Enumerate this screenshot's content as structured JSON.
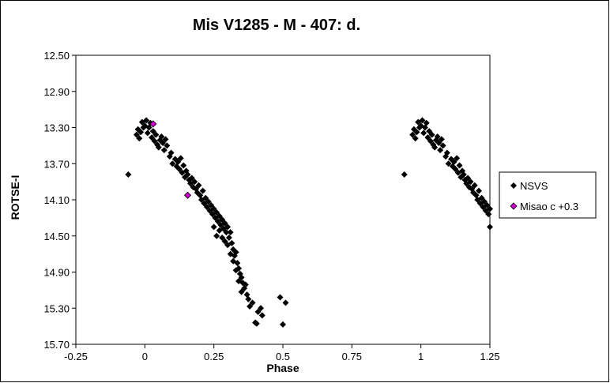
{
  "chart_data": {
    "type": "scatter",
    "title": "Mis V1285 - M - 407: d.",
    "xlabel": "Phase",
    "ylabel": "ROTSE-I",
    "xlim": [
      -0.25,
      1.25
    ],
    "ylim": [
      12.5,
      15.7
    ],
    "y_inverted": true,
    "grid": false,
    "legend_position": "right",
    "xticks": [
      -0.25,
      0,
      0.25,
      0.5,
      0.75,
      1,
      1.25
    ],
    "xtick_labels": [
      "-0.25",
      "0",
      "0.25",
      "0.5",
      "0.75",
      "1",
      "1.25"
    ],
    "yticks": [
      12.5,
      12.9,
      13.3,
      13.7,
      14.1,
      14.5,
      14.9,
      15.3,
      15.7
    ],
    "ytick_labels": [
      "12.50",
      "12.90",
      "13.30",
      "13.70",
      "14.10",
      "14.50",
      "14.90",
      "15.30",
      "15.70"
    ],
    "series": [
      {
        "name": "NSVS",
        "color": "#000000",
        "marker": "diamond",
        "points": [
          [
            -0.06,
            13.82
          ],
          [
            -0.03,
            13.38
          ],
          [
            -0.025,
            13.32
          ],
          [
            -0.02,
            13.42
          ],
          [
            -0.015,
            13.35
          ],
          [
            -0.01,
            13.24
          ],
          [
            -0.005,
            13.3
          ],
          [
            0.0,
            13.28
          ],
          [
            0.005,
            13.22
          ],
          [
            0.01,
            13.36
          ],
          [
            0.015,
            13.3
          ],
          [
            0.02,
            13.25
          ],
          [
            0.025,
            13.41
          ],
          [
            0.03,
            13.34
          ],
          [
            0.035,
            13.45
          ],
          [
            0.04,
            13.38
          ],
          [
            0.045,
            13.49
          ],
          [
            0.05,
            13.52
          ],
          [
            0.055,
            13.44
          ],
          [
            0.06,
            13.4
          ],
          [
            0.065,
            13.47
          ],
          [
            0.07,
            13.55
          ],
          [
            0.075,
            13.43
          ],
          [
            0.08,
            13.5
          ],
          [
            0.09,
            13.62
          ],
          [
            0.095,
            13.58
          ],
          [
            0.1,
            13.7
          ],
          [
            0.11,
            13.65
          ],
          [
            0.115,
            13.73
          ],
          [
            0.12,
            13.68
          ],
          [
            0.125,
            13.76
          ],
          [
            0.13,
            13.64
          ],
          [
            0.135,
            13.8
          ],
          [
            0.14,
            13.72
          ],
          [
            0.145,
            13.85
          ],
          [
            0.15,
            13.78
          ],
          [
            0.155,
            13.82
          ],
          [
            0.16,
            13.88
          ],
          [
            0.165,
            13.92
          ],
          [
            0.17,
            13.86
          ],
          [
            0.175,
            13.96
          ],
          [
            0.18,
            13.9
          ],
          [
            0.185,
            13.98
          ],
          [
            0.19,
            14.02
          ],
          [
            0.195,
            13.94
          ],
          [
            0.2,
            14.05
          ],
          [
            0.205,
            14.1
          ],
          [
            0.21,
            14.0
          ],
          [
            0.215,
            14.14
          ],
          [
            0.22,
            14.08
          ],
          [
            0.225,
            14.18
          ],
          [
            0.23,
            14.12
          ],
          [
            0.235,
            14.22
          ],
          [
            0.24,
            14.16
          ],
          [
            0.245,
            14.26
          ],
          [
            0.25,
            14.2
          ],
          [
            0.255,
            14.3
          ],
          [
            0.26,
            14.24
          ],
          [
            0.265,
            14.34
          ],
          [
            0.27,
            14.28
          ],
          [
            0.275,
            14.38
          ],
          [
            0.28,
            14.32
          ],
          [
            0.285,
            14.42
          ],
          [
            0.29,
            14.36
          ],
          [
            0.295,
            14.46
          ],
          [
            0.3,
            14.4
          ],
          [
            0.305,
            14.52
          ],
          [
            0.31,
            14.46
          ],
          [
            0.315,
            14.58
          ],
          [
            0.32,
            14.65
          ],
          [
            0.325,
            14.72
          ],
          [
            0.33,
            14.68
          ],
          [
            0.335,
            14.8
          ],
          [
            0.34,
            14.86
          ],
          [
            0.345,
            14.92
          ],
          [
            0.35,
            14.96
          ],
          [
            0.355,
            15.02
          ],
          [
            0.36,
            15.08
          ],
          [
            0.365,
            15.04
          ],
          [
            0.37,
            15.15
          ],
          [
            0.375,
            15.2
          ],
          [
            0.25,
            14.4
          ],
          [
            0.26,
            14.5
          ],
          [
            0.27,
            14.44
          ],
          [
            0.28,
            14.52
          ],
          [
            0.29,
            14.56
          ],
          [
            0.3,
            14.6
          ],
          [
            0.31,
            14.7
          ],
          [
            0.32,
            14.78
          ],
          [
            0.33,
            14.88
          ],
          [
            0.34,
            15.0
          ],
          [
            0.35,
            15.12
          ],
          [
            0.38,
            15.28
          ],
          [
            0.39,
            15.24
          ],
          [
            0.4,
            15.46
          ],
          [
            0.405,
            15.47
          ],
          [
            0.41,
            15.34
          ],
          [
            0.42,
            15.3
          ],
          [
            0.425,
            15.38
          ],
          [
            0.49,
            15.18
          ],
          [
            0.5,
            15.48
          ],
          [
            0.51,
            15.24
          ]
        ]
      },
      {
        "name": "Misao c +0.3",
        "color": "#cc00cc",
        "marker": "diamond",
        "points": [
          [
            0.03,
            13.26
          ],
          [
            0.155,
            14.05
          ]
        ]
      }
    ]
  }
}
